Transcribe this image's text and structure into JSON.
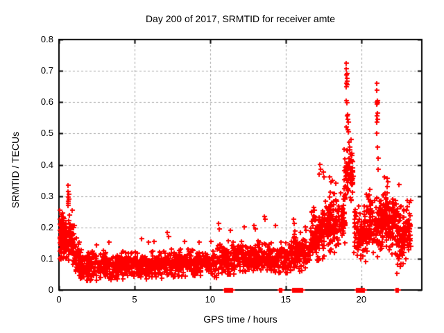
{
  "chart_data": {
    "type": "scatter",
    "title": "Day 200 of 2017, SRMTID for receiver amte",
    "xlabel": "GPS time / hours",
    "ylabel": "SRMTID / TECUs",
    "xlim": [
      0,
      24
    ],
    "ylim": [
      0,
      0.8
    ],
    "xticks": [
      0,
      5,
      10,
      15,
      20
    ],
    "xtick_labels": [
      "0",
      "5",
      "10",
      "15",
      "20"
    ],
    "yticks": [
      0,
      0.1,
      0.2,
      0.3,
      0.4,
      0.5,
      0.6,
      0.7,
      0.8
    ],
    "ytick_labels": [
      "0",
      "0.1",
      "0.2",
      "0.3",
      "0.4",
      "0.5",
      "0.6",
      "0.7",
      "0.8"
    ],
    "grid": {
      "show": true,
      "color": "#a6a6a6",
      "dash": [
        3,
        3
      ]
    },
    "legend": "none",
    "marker": {
      "glyph": "plus",
      "color": "#ff0000",
      "size": 7,
      "thickness": 2
    },
    "seed": 20170200,
    "bands": [
      {
        "t0": 0.0,
        "t1": 0.35,
        "n": 55,
        "lo": 0.1,
        "hi": 0.26,
        "c": 0.17,
        "s": 0.05
      },
      {
        "t0": 0.05,
        "t1": 1.05,
        "n": 130,
        "lo": 0.095,
        "hi": 0.255,
        "c": 0.165,
        "s": 0.05
      },
      {
        "t0": 0.9,
        "t1": 1.35,
        "n": 45,
        "lo": 0.055,
        "hi": 0.17,
        "c": 0.105,
        "s": 0.035
      },
      {
        "t0": 1.3,
        "t1": 4.0,
        "n": 270,
        "lo": 0.03,
        "hi": 0.135,
        "c": 0.078,
        "s": 0.03
      },
      {
        "t0": 4.0,
        "t1": 7.0,
        "n": 270,
        "lo": 0.035,
        "hi": 0.125,
        "c": 0.08,
        "s": 0.028
      },
      {
        "t0": 7.0,
        "t1": 10.45,
        "n": 300,
        "lo": 0.04,
        "hi": 0.13,
        "c": 0.085,
        "s": 0.028
      },
      {
        "t0": 10.45,
        "t1": 11.65,
        "n": 110,
        "lo": 0.05,
        "hi": 0.175,
        "c": 0.1,
        "s": 0.035
      },
      {
        "t0": 11.65,
        "t1": 13.25,
        "n": 150,
        "lo": 0.06,
        "hi": 0.165,
        "c": 0.105,
        "s": 0.033
      },
      {
        "t0": 13.25,
        "t1": 15.2,
        "n": 170,
        "lo": 0.055,
        "hi": 0.155,
        "c": 0.1,
        "s": 0.032
      },
      {
        "t0": 15.2,
        "t1": 16.6,
        "n": 140,
        "lo": 0.06,
        "hi": 0.19,
        "c": 0.115,
        "s": 0.04
      },
      {
        "t0": 16.6,
        "t1": 17.6,
        "n": 125,
        "lo": 0.095,
        "hi": 0.3,
        "c": 0.175,
        "s": 0.06
      },
      {
        "t0": 17.6,
        "t1": 18.55,
        "n": 120,
        "lo": 0.12,
        "hi": 0.33,
        "c": 0.215,
        "s": 0.06
      },
      {
        "t0": 18.6,
        "t1": 18.95,
        "n": 35,
        "lo": 0.15,
        "hi": 0.32,
        "c": 0.23,
        "s": 0.05
      },
      {
        "t0": 18.85,
        "t1": 19.45,
        "n": 75,
        "lo": 0.28,
        "hi": 0.46,
        "c": 0.37,
        "s": 0.05
      },
      {
        "t0": 19.5,
        "t1": 20.3,
        "n": 95,
        "lo": 0.085,
        "hi": 0.3,
        "c": 0.18,
        "s": 0.06
      },
      {
        "t0": 20.3,
        "t1": 21.35,
        "n": 130,
        "lo": 0.1,
        "hi": 0.33,
        "c": 0.205,
        "s": 0.06
      },
      {
        "t0": 21.35,
        "t1": 22.3,
        "n": 140,
        "lo": 0.1,
        "hi": 0.345,
        "c": 0.215,
        "s": 0.06
      },
      {
        "t0": 22.3,
        "t1": 23.25,
        "n": 130,
        "lo": 0.04,
        "hi": 0.33,
        "c": 0.175,
        "s": 0.07
      }
    ],
    "points": [
      [
        0.03,
        0.255
      ],
      [
        0.05,
        0.225
      ],
      [
        0.08,
        0.21
      ],
      [
        0.58,
        0.335
      ],
      [
        0.6,
        0.315
      ],
      [
        0.62,
        0.306
      ],
      [
        0.59,
        0.298
      ],
      [
        0.63,
        0.291
      ],
      [
        0.58,
        0.284
      ],
      [
        0.61,
        0.277
      ],
      [
        0.6,
        0.27
      ],
      [
        2.5,
        0.145
      ],
      [
        3.3,
        0.152
      ],
      [
        5.45,
        0.163
      ],
      [
        5.9,
        0.152
      ],
      [
        6.3,
        0.156
      ],
      [
        7.15,
        0.185
      ],
      [
        7.25,
        0.171
      ],
      [
        8.3,
        0.156
      ],
      [
        9.25,
        0.153
      ],
      [
        10.05,
        0.156
      ],
      [
        10.55,
        0.212
      ],
      [
        10.6,
        0.196
      ],
      [
        11.35,
        0.191
      ],
      [
        12.25,
        0.201
      ],
      [
        12.9,
        0.206
      ],
      [
        13.0,
        0.196
      ],
      [
        13.6,
        0.236
      ],
      [
        13.65,
        0.226
      ],
      [
        14.3,
        0.206
      ],
      [
        15.5,
        0.226
      ],
      [
        15.55,
        0.212
      ],
      [
        16.3,
        0.201
      ],
      [
        16.35,
        0.191
      ],
      [
        17.2,
        0.371
      ],
      [
        17.25,
        0.401
      ],
      [
        17.3,
        0.386
      ],
      [
        17.5,
        0.376
      ],
      [
        17.55,
        0.361
      ],
      [
        17.9,
        0.361
      ],
      [
        18.0,
        0.346
      ],
      [
        18.1,
        0.351
      ],
      [
        18.3,
        0.341
      ],
      [
        19.0,
        0.725
      ],
      [
        19.02,
        0.706
      ],
      [
        19.05,
        0.691
      ],
      [
        19.0,
        0.687
      ],
      [
        19.03,
        0.676
      ],
      [
        19.06,
        0.666
      ],
      [
        19.0,
        0.661
      ],
      [
        19.04,
        0.656
      ],
      [
        19.02,
        0.649
      ],
      [
        19.0,
        0.604
      ],
      [
        19.05,
        0.599
      ],
      [
        19.1,
        0.561
      ],
      [
        19.05,
        0.556
      ],
      [
        19.08,
        0.546
      ],
      [
        19.12,
        0.536
      ],
      [
        19.0,
        0.521
      ],
      [
        19.1,
        0.511
      ],
      [
        19.15,
        0.506
      ],
      [
        19.3,
        0.481
      ],
      [
        19.2,
        0.471
      ],
      [
        19.25,
        0.456
      ],
      [
        19.1,
        0.446
      ],
      [
        19.35,
        0.431
      ],
      [
        19.2,
        0.421
      ],
      [
        19.4,
        0.411
      ],
      [
        21.0,
        0.661
      ],
      [
        21.02,
        0.639
      ],
      [
        21.05,
        0.606
      ],
      [
        21.0,
        0.601
      ],
      [
        21.08,
        0.599
      ],
      [
        21.03,
        0.593
      ],
      [
        21.05,
        0.566
      ],
      [
        21.0,
        0.556
      ],
      [
        21.06,
        0.546
      ],
      [
        21.02,
        0.536
      ],
      [
        21.04,
        0.501
      ],
      [
        21.05,
        0.456
      ],
      [
        21.1,
        0.421
      ],
      [
        21.1,
        0.386
      ],
      [
        21.5,
        0.361
      ],
      [
        21.7,
        0.357
      ],
      [
        21.75,
        0.346
      ],
      [
        22.5,
        0.336
      ],
      [
        20.35,
        0.306
      ],
      [
        20.4,
        0.296
      ]
    ],
    "zero_runs": [
      [
        10.95,
        11.18
      ],
      [
        11.25,
        11.45
      ],
      [
        14.6,
        14.72
      ],
      [
        15.45,
        15.62
      ],
      [
        15.7,
        16.12
      ],
      [
        19.7,
        19.88
      ],
      [
        19.95,
        20.18
      ],
      [
        22.28,
        22.45
      ]
    ]
  }
}
